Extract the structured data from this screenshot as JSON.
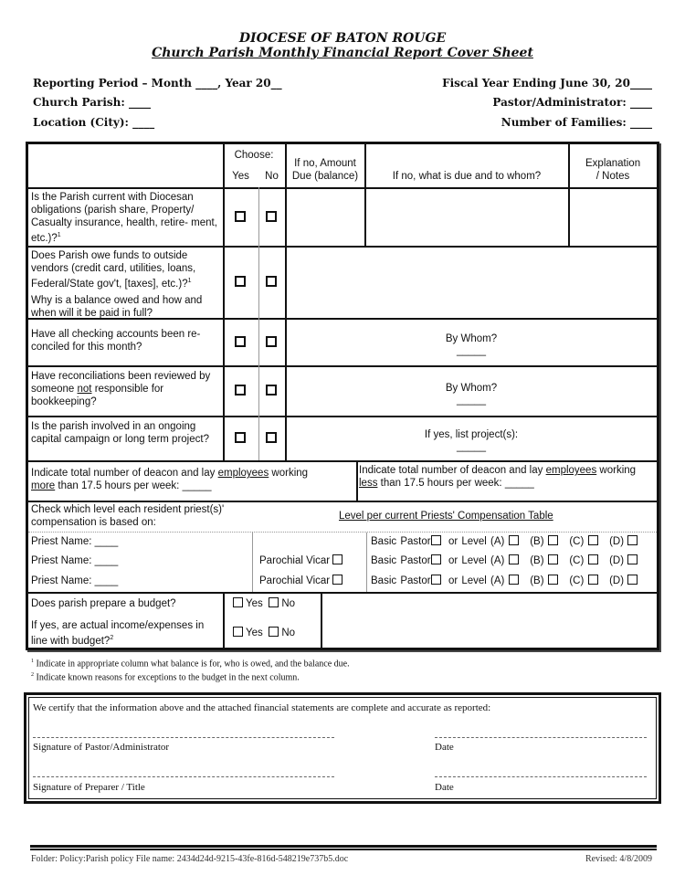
{
  "header": {
    "org": "DIOCESE OF BATON ROUGE",
    "title": "Church Parish Monthly Financial Report Cover Sheet"
  },
  "fields": {
    "reporting_period": "Reporting Period – Month ____,  Year 20__",
    "fiscal_year": "Fiscal Year Ending June 30, 20____",
    "church_parish": "Church Parish: ____",
    "pastor": "Pastor/Administrator: ____",
    "location": "Location (City): ____",
    "families": "Number of Families: ____"
  },
  "table": {
    "headers": {
      "choose": "Choose:",
      "yes": "Yes",
      "no": "No",
      "amount": "If no, Amount Due (balance)",
      "whom": "If no, what is due and to whom?",
      "notes": "Explanation / Notes"
    },
    "rows": [
      {
        "question": "Is the Parish current with Diocesan obligations (parish share, Property/ Casualty insurance, health, retire- ment, etc.)?",
        "sup": "1"
      },
      {
        "question": "Does Parish owe funds to outside vendors (credit card, utilities, loans, Federal/State gov't, [taxes], etc.)?",
        "sup": "1",
        "question2": "Why is a balance owed and how and when will it be paid in full?"
      },
      {
        "question": "Have all checking accounts been re- conciled for this month?",
        "answer_label": "By Whom?",
        "blank": "_____"
      },
      {
        "question_pre": "Have reconciliations been reviewed by someone ",
        "question_u": "not",
        "question_post": " responsible for bookkeeping?",
        "answer_label": "By Whom?",
        "blank": "_____"
      },
      {
        "question": "Is the parish involved in an ongoing capital campaign or long term project?",
        "answer_label": "If yes, list project(s):",
        "blank": "_____"
      }
    ],
    "employees": {
      "more_pre": "Indicate total number of deacon and lay ",
      "more_u": "employees",
      "more_mid": " working ",
      "more_u2": "more",
      "more_post": " than 17.5 hours per week: _____",
      "less_pre": "Indicate total number of deacon and lay ",
      "less_u": "employees",
      "less_mid": " working ",
      "less_u2": "less",
      "less_post": " than 17.5 hours per week: _____"
    },
    "priests": {
      "instruction": "Check which level each resident priest(s)' compensation is based on:",
      "level_header": "Level per current Priests' Compensation Table",
      "priest_name": "Priest Name: ____",
      "vicar": "Parochial Vicar",
      "basic": "Basic Pastor",
      "or_level": "or Level (A)",
      "b": "(B)",
      "c": "(C)",
      "d": "(D)"
    },
    "budget": {
      "q1": "Does parish prepare a budget?",
      "q2": "If yes, are actual income/expenses in line with budget?",
      "sup": "2",
      "yes": "Yes",
      "no": "No"
    }
  },
  "footnotes": [
    {
      "n": "1",
      "text": "Indicate in appropriate column what balance is for, who is owed, and the balance due."
    },
    {
      "n": "2",
      "text": "Indicate known reasons for exceptions to the budget in the next column."
    }
  ],
  "certification": {
    "statement": "We certify that the information above and the attached financial statements are complete and accurate as reported:",
    "sig1": "Signature of Pastor/Administrator",
    "sig2": "Signature of Preparer / Title",
    "date": "Date"
  },
  "footer": {
    "file": "Folder: Policy:Parish policy  File name: 2434d24d-9215-43fe-816d-548219e737b5.doc",
    "revised": "Revised:  4/8/2009"
  }
}
